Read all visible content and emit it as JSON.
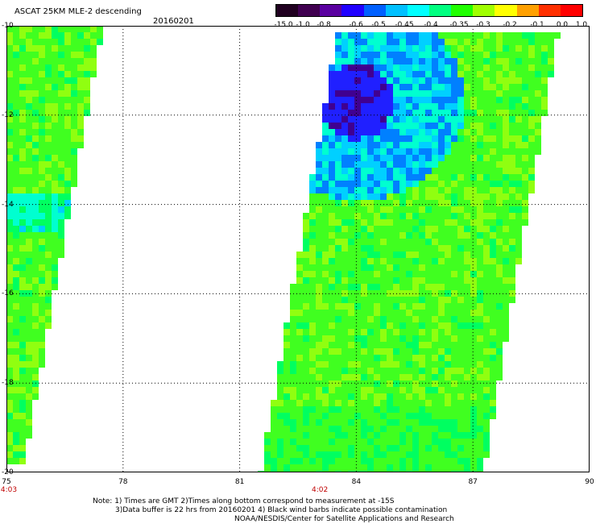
{
  "title": "ASCAT 25KM MLE-2 descending",
  "date": "20160201",
  "colorbar": {
    "labels": [
      "-15.0",
      "-1.0",
      "-0.8",
      "-0.6",
      "-0.5",
      "-0.45",
      "-0.4",
      "-0.35",
      "-0.3",
      "-0.2",
      "-0.1",
      "0.0",
      "1.0"
    ],
    "colors": [
      "#200020",
      "#400050",
      "#5a00a0",
      "#2000ff",
      "#0060ff",
      "#00c0ff",
      "#00ffff",
      "#00ff80",
      "#20ff00",
      "#a0ff00",
      "#ffff00",
      "#ffa000",
      "#ff3000",
      "#ff0000"
    ]
  },
  "map": {
    "lon_min": 75,
    "lon_max": 90,
    "lat_min": -20,
    "lat_max": -10,
    "x_ticks": [
      "75",
      "78",
      "81",
      "84",
      "87",
      "90"
    ],
    "y_ticks": [
      "-10",
      "-12",
      "-14",
      "-16",
      "-18",
      "-20"
    ],
    "pass_times": [
      {
        "label": "4:03",
        "lon": 75
      },
      {
        "label": "4:02",
        "lon": 83
      }
    ]
  },
  "notes": {
    "line1": "Note: 1) Times are GMT 2)Times along bottom correspond to measurement at -15S",
    "line2": "3)Data buffer is 22 hrs from 20160201 4) Black wind barbs indicate possible contamination",
    "line3": "NOAA/NESDIS/Center for Satellite Applications and Research"
  }
}
